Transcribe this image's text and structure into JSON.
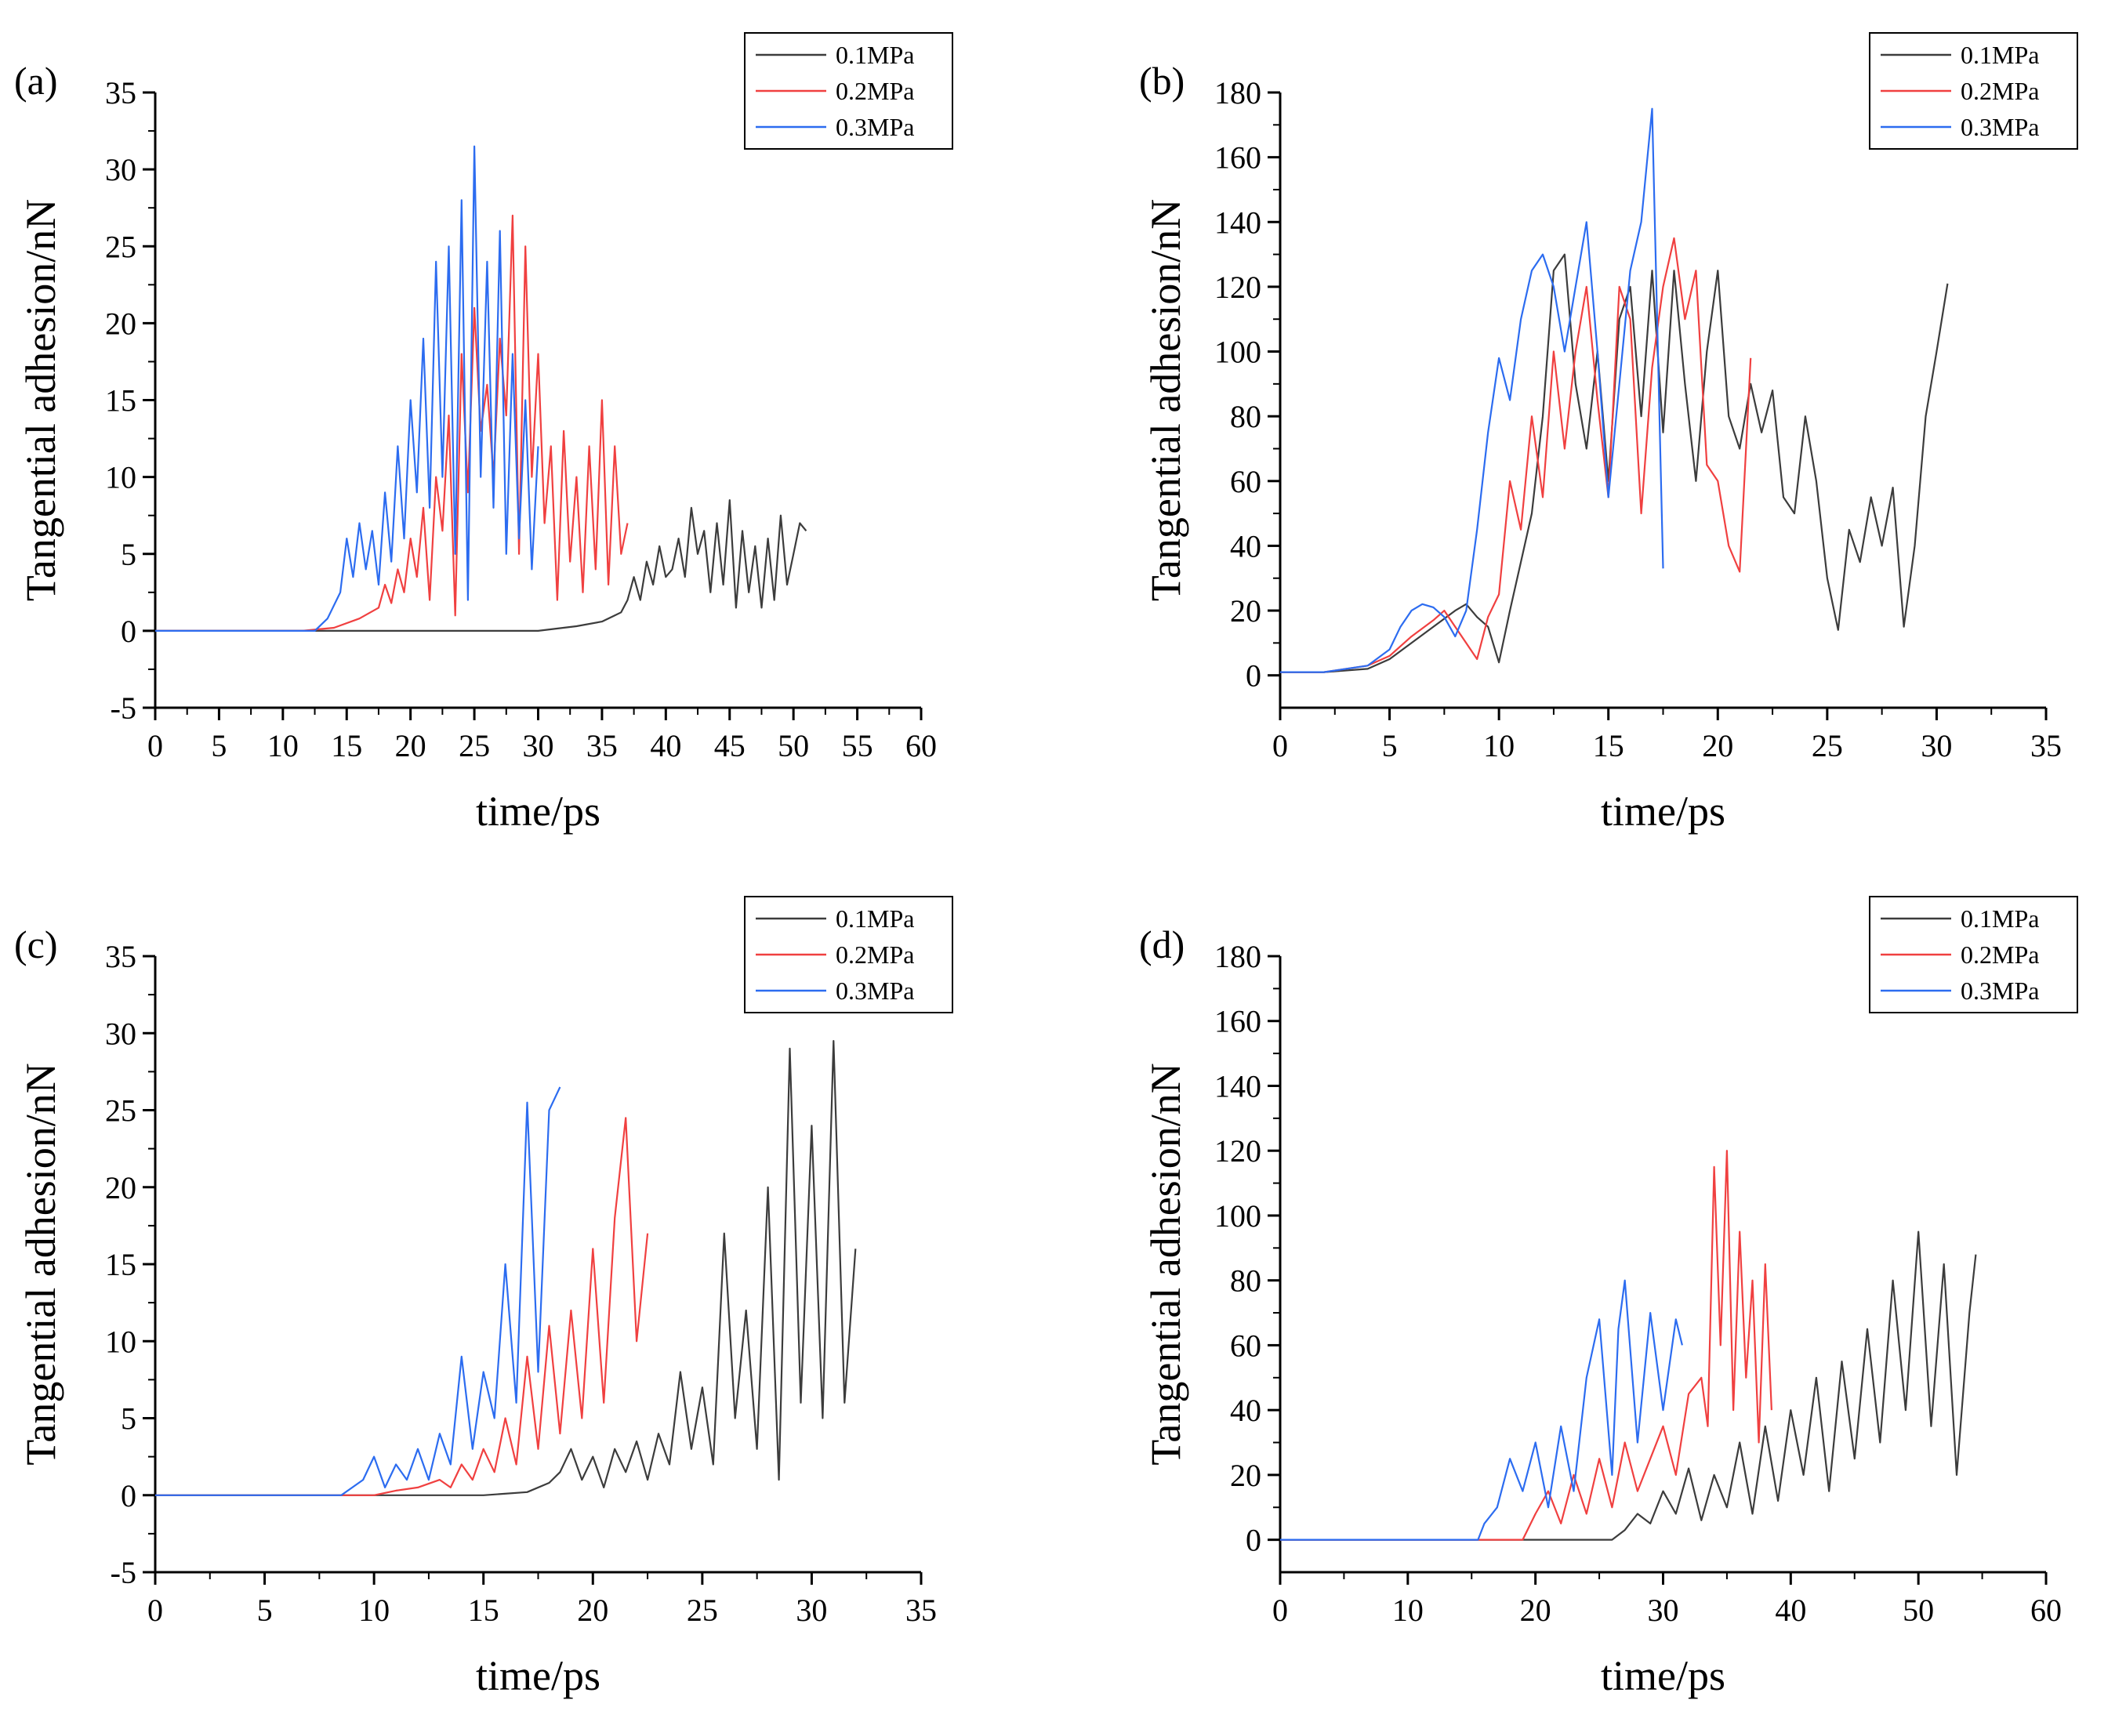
{
  "figure": {
    "legend_entries": [
      "0.1MPa",
      "0.2MPa",
      "0.3MPa"
    ],
    "series_colors": [
      "#3c3c3c",
      "#f04040",
      "#2c6cf0"
    ]
  },
  "chart_data": [
    {
      "type": "line",
      "panel_label": "(a)",
      "xlabel": "time/ps",
      "ylabel": "Tangential adhesion/nN",
      "xlim": [
        0,
        60
      ],
      "ylim": [
        -5,
        35
      ],
      "xticks": [
        0,
        5,
        10,
        15,
        20,
        25,
        30,
        35,
        40,
        45,
        50,
        55,
        60
      ],
      "yticks": [
        -5,
        0,
        5,
        10,
        15,
        20,
        25,
        30,
        35
      ],
      "legend_position": "top-right",
      "series": [
        {
          "name": "0.1MPa",
          "x": [
            0,
            10,
            20,
            30,
            33,
            35,
            36,
            36.5,
            37,
            37.5,
            38,
            38.5,
            39,
            39.5,
            40,
            40.5,
            41,
            41.5,
            42,
            42.5,
            43,
            43.5,
            44,
            44.5,
            45,
            45.5,
            46,
            46.5,
            47,
            47.5,
            48,
            48.5,
            49,
            49.5,
            50,
            50.5,
            51
          ],
          "y": [
            0,
            0,
            0,
            0,
            0.3,
            0.6,
            1.0,
            1.2,
            2.0,
            3.5,
            2.0,
            4.5,
            3.0,
            5.5,
            3.5,
            4.0,
            6.0,
            3.5,
            8.0,
            5.0,
            6.5,
            2.5,
            7.0,
            3.0,
            8.5,
            1.5,
            6.5,
            2.5,
            5.5,
            1.5,
            6.0,
            2.0,
            7.5,
            3.0,
            5.0,
            7.0,
            6.5
          ]
        },
        {
          "name": "0.2MPa",
          "x": [
            0,
            11.5,
            14,
            16,
            17.5,
            18,
            18.5,
            19,
            19.5,
            20,
            20.5,
            21,
            21.5,
            22,
            22.5,
            23,
            23.5,
            24,
            24.5,
            25,
            25.5,
            26,
            26.5,
            27,
            27.5,
            28,
            28.5,
            29,
            29.5,
            30,
            30.5,
            31,
            31.5,
            32,
            32.5,
            33,
            33.5,
            34,
            34.5,
            35,
            35.5,
            36,
            36.5,
            37
          ],
          "y": [
            0,
            0,
            0.2,
            0.8,
            1.5,
            3.0,
            1.8,
            4.0,
            2.5,
            6.0,
            3.5,
            8.0,
            2.0,
            10.0,
            6.5,
            14.0,
            1.0,
            18.0,
            9.0,
            21.0,
            13.0,
            16.0,
            10.0,
            19.0,
            14.0,
            27.0,
            5.0,
            25.0,
            10.0,
            18.0,
            7.0,
            12.0,
            2.0,
            13.0,
            4.5,
            10.0,
            2.5,
            12.0,
            4.0,
            15.0,
            3.0,
            12.0,
            5.0,
            7.0
          ]
        },
        {
          "name": "0.3MPa",
          "x": [
            0,
            12.5,
            13.5,
            14.5,
            15,
            15.5,
            16,
            16.5,
            17,
            17.5,
            18,
            18.5,
            19,
            19.5,
            20,
            20.5,
            21,
            21.5,
            22,
            22.5,
            23,
            23.5,
            24,
            24.5,
            25,
            25.5,
            26,
            26.5,
            27,
            27.5,
            28,
            28.5,
            29,
            29.5,
            30
          ],
          "y": [
            0,
            0,
            0.8,
            2.5,
            6.0,
            3.5,
            7.0,
            4.0,
            6.5,
            3.0,
            9.0,
            4.5,
            12.0,
            6.0,
            15.0,
            9.0,
            19.0,
            8.0,
            24.0,
            10.0,
            25.0,
            5.0,
            28.0,
            2.0,
            31.5,
            10.0,
            24.0,
            8.0,
            26.0,
            5.0,
            18.0,
            6.0,
            15.0,
            4.0,
            12.0
          ]
        }
      ]
    },
    {
      "type": "line",
      "panel_label": "(b)",
      "xlabel": "time/ps",
      "ylabel": "Tangential adhesion/nN",
      "xlim": [
        0,
        35
      ],
      "ylim": [
        -10,
        180
      ],
      "xticks": [
        0,
        5,
        10,
        15,
        20,
        25,
        30,
        35
      ],
      "yticks": [
        0,
        20,
        40,
        60,
        80,
        100,
        120,
        140,
        160,
        180
      ],
      "legend_position": "top-right",
      "series": [
        {
          "name": "0.1MPa",
          "x": [
            0,
            2,
            4,
            5,
            6,
            7,
            8,
            8.5,
            9,
            9.5,
            10,
            10.5,
            11,
            11.5,
            12,
            12.5,
            13,
            13.5,
            14,
            14.5,
            15,
            15.5,
            16,
            16.5,
            17,
            17.5,
            18,
            18.5,
            19,
            19.5,
            20,
            20.5,
            21,
            21.5,
            22,
            22.5,
            23,
            23.5,
            24,
            24.5,
            25,
            25.5,
            26,
            26.5,
            27,
            27.5,
            28,
            28.5,
            29,
            29.5,
            30,
            30.5
          ],
          "y": [
            1,
            1,
            2,
            5,
            10,
            15,
            20,
            22,
            18,
            15,
            4,
            20,
            35,
            50,
            80,
            125,
            130,
            90,
            70,
            100,
            60,
            110,
            120,
            80,
            125,
            75,
            125,
            90,
            60,
            100,
            125,
            80,
            70,
            90,
            75,
            88,
            55,
            50,
            80,
            60,
            30,
            14,
            45,
            35,
            55,
            40,
            58,
            15,
            40,
            80,
            100,
            121
          ]
        },
        {
          "name": "0.2MPa",
          "x": [
            0,
            2,
            4,
            5,
            6,
            7,
            7.5,
            8,
            8.5,
            9,
            9.5,
            10,
            10.5,
            11,
            11.5,
            12,
            12.5,
            13,
            13.5,
            14,
            14.5,
            15,
            15.5,
            16,
            16.5,
            17,
            17.5,
            18,
            18.5,
            19,
            19.5,
            20,
            20.5,
            21,
            21.5
          ],
          "y": [
            1,
            1,
            3,
            6,
            12,
            17,
            20,
            15,
            10,
            5,
            18,
            25,
            60,
            45,
            80,
            55,
            100,
            70,
            100,
            120,
            85,
            55,
            120,
            110,
            50,
            95,
            120,
            135,
            110,
            125,
            65,
            60,
            40,
            32,
            98
          ]
        },
        {
          "name": "0.3MPa",
          "x": [
            0,
            2,
            4,
            5,
            5.5,
            6,
            6.5,
            7,
            7.5,
            8,
            8.5,
            9,
            9.5,
            10,
            10.5,
            11,
            11.5,
            12,
            12.5,
            13,
            13.5,
            14,
            14.5,
            15,
            15.5,
            16,
            16.5,
            17,
            17.5
          ],
          "y": [
            1,
            1,
            3,
            8,
            15,
            20,
            22,
            21,
            18,
            12,
            20,
            45,
            75,
            98,
            85,
            110,
            125,
            130,
            120,
            100,
            120,
            140,
            100,
            55,
            90,
            125,
            140,
            175,
            33
          ]
        }
      ]
    },
    {
      "type": "line",
      "panel_label": "(c)",
      "xlabel": "time/ps",
      "ylabel": "Tangential adhesion/nN",
      "xlim": [
        0,
        35
      ],
      "ylim": [
        -5,
        35
      ],
      "xticks": [
        0,
        5,
        10,
        15,
        20,
        25,
        30,
        35
      ],
      "yticks": [
        -5,
        0,
        5,
        10,
        15,
        20,
        25,
        30,
        35
      ],
      "legend_position": "top-right",
      "series": [
        {
          "name": "0.1MPa",
          "x": [
            0,
            10,
            15,
            17,
            18,
            18.5,
            19,
            19.5,
            20,
            20.5,
            21,
            21.5,
            22,
            22.5,
            23,
            23.5,
            24,
            24.5,
            25,
            25.5,
            26,
            26.5,
            27,
            27.5,
            28,
            28.5,
            29,
            29.5,
            30,
            30.5,
            31,
            31.5,
            32
          ],
          "y": [
            0,
            0,
            0,
            0.2,
            0.8,
            1.5,
            3.0,
            1.0,
            2.5,
            0.5,
            3.0,
            1.5,
            3.5,
            1.0,
            4.0,
            2.0,
            8.0,
            3.0,
            7.0,
            2.0,
            17.0,
            5.0,
            12.0,
            3.0,
            20.0,
            1.0,
            29.0,
            6.0,
            24.0,
            5.0,
            29.5,
            6.0,
            16.0
          ]
        },
        {
          "name": "0.2MPa",
          "x": [
            0,
            10,
            11,
            12,
            13,
            13.5,
            14,
            14.5,
            15,
            15.5,
            16,
            16.5,
            17,
            17.5,
            18,
            18.5,
            19,
            19.5,
            20,
            20.5,
            21,
            21.5,
            22,
            22.5
          ],
          "y": [
            0,
            0,
            0.3,
            0.5,
            1.0,
            0.5,
            2.0,
            1.0,
            3.0,
            1.5,
            5.0,
            2.0,
            9.0,
            3.0,
            11.0,
            4.0,
            12.0,
            5.0,
            16.0,
            6.0,
            18.0,
            24.5,
            10.0,
            17.0
          ]
        },
        {
          "name": "0.3MPa",
          "x": [
            0,
            8.5,
            9.5,
            10,
            10.5,
            11,
            11.5,
            12,
            12.5,
            13,
            13.5,
            14,
            14.5,
            15,
            15.5,
            16,
            16.5,
            17,
            17.5,
            18,
            18.5
          ],
          "y": [
            0,
            0,
            1.0,
            2.5,
            0.5,
            2.0,
            1.0,
            3.0,
            1.0,
            4.0,
            2.0,
            9.0,
            3.0,
            8.0,
            5.0,
            15.0,
            6.0,
            25.5,
            8.0,
            25.0,
            26.5
          ]
        }
      ]
    },
    {
      "type": "line",
      "panel_label": "(d)",
      "xlabel": "time/ps",
      "ylabel": "Tangential adhesion/nN",
      "xlim": [
        0,
        60
      ],
      "ylim": [
        -10,
        180
      ],
      "xticks": [
        0,
        10,
        20,
        30,
        40,
        50,
        60
      ],
      "yticks": [
        0,
        20,
        40,
        60,
        80,
        100,
        120,
        140,
        160,
        180
      ],
      "legend_position": "top-right",
      "series": [
        {
          "name": "0.1MPa",
          "x": [
            0,
            20,
            26,
            27,
            28,
            29,
            30,
            31,
            32,
            33,
            34,
            35,
            36,
            37,
            38,
            39,
            40,
            41,
            42,
            43,
            44,
            45,
            46,
            47,
            48,
            49,
            50,
            51,
            52,
            53,
            54,
            54.5
          ],
          "y": [
            0,
            0,
            0,
            3,
            8,
            5,
            15,
            8,
            22,
            6,
            20,
            10,
            30,
            8,
            35,
            12,
            40,
            20,
            50,
            15,
            55,
            25,
            65,
            30,
            80,
            40,
            95,
            35,
            85,
            20,
            70,
            88
          ]
        },
        {
          "name": "0.2MPa",
          "x": [
            0,
            19,
            20,
            21,
            22,
            23,
            24,
            25,
            26,
            27,
            28,
            29,
            30,
            31,
            32,
            33,
            33.5,
            34,
            34.5,
            35,
            35.5,
            36,
            36.5,
            37,
            37.5,
            38,
            38.5
          ],
          "y": [
            0,
            0,
            8,
            15,
            5,
            20,
            8,
            25,
            10,
            30,
            15,
            25,
            35,
            20,
            45,
            50,
            35,
            115,
            60,
            120,
            40,
            95,
            50,
            80,
            30,
            85,
            40
          ]
        },
        {
          "name": "0.3MPa",
          "x": [
            0,
            15.5,
            16,
            17,
            18,
            19,
            20,
            21,
            22,
            23,
            24,
            25,
            26,
            26.5,
            27,
            28,
            29,
            30,
            31,
            31.5
          ],
          "y": [
            0,
            0,
            5,
            10,
            25,
            15,
            30,
            10,
            35,
            15,
            50,
            68,
            20,
            65,
            80,
            30,
            70,
            40,
            68,
            60
          ]
        }
      ]
    }
  ]
}
